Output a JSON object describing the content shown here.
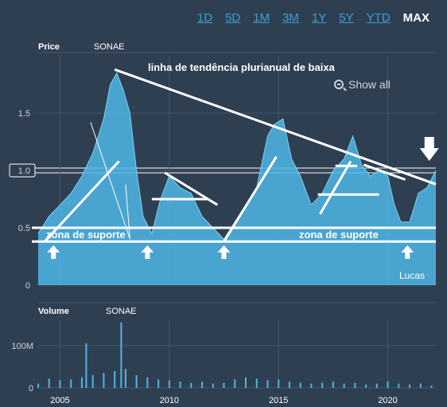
{
  "range_buttons": [
    {
      "label": "1D",
      "active": false
    },
    {
      "label": "5D",
      "active": false
    },
    {
      "label": "1M",
      "active": false
    },
    {
      "label": "3M",
      "active": false
    },
    {
      "label": "1Y",
      "active": false
    },
    {
      "label": "5Y",
      "active": false
    },
    {
      "label": "YTD",
      "active": false
    },
    {
      "label": "MAX",
      "active": true
    }
  ],
  "show_all": "Show all",
  "colors": {
    "background": "#2f3f52",
    "fill": "#4fb6e6",
    "fill_dark": "#2e86b8",
    "line": "#ffffff",
    "tick": "#c9d3de",
    "active_button": "#ffffff",
    "button": "#3aa0d6"
  },
  "chart_data": [
    {
      "type": "area",
      "ylabel": "Price",
      "series_label": "SONAE",
      "ylim": [
        0,
        2.0
      ],
      "yticks": [
        0,
        0.5,
        1.0,
        1.5
      ],
      "ytick_labels": [
        "0",
        "0.5",
        "1.0",
        "1.5"
      ],
      "xlim": [
        2004.0,
        2022.2
      ],
      "xticks": [
        2005,
        2010,
        2015,
        2020
      ],
      "highlight_tick": 1.0,
      "series": [
        {
          "x": [
            2004.0,
            2004.5,
            2005.0,
            2005.5,
            2006.0,
            2006.5,
            2007.0,
            2007.3,
            2007.6,
            2007.9,
            2008.2,
            2008.5,
            2008.8,
            2009.2,
            2009.6,
            2010.0,
            2010.5,
            2011.0,
            2011.5,
            2012.0,
            2012.5,
            2013.0,
            2013.5,
            2014.0,
            2014.5,
            2014.8,
            2015.2,
            2015.6,
            2016.0,
            2016.5,
            2017.0,
            2017.5,
            2018.0,
            2018.4,
            2018.8,
            2019.2,
            2019.6,
            2020.0,
            2020.3,
            2020.6,
            2021.0,
            2021.4,
            2021.8,
            2022.2
          ],
          "y": [
            0.45,
            0.6,
            0.7,
            0.8,
            0.95,
            1.15,
            1.45,
            1.75,
            1.85,
            1.7,
            1.5,
            1.0,
            0.6,
            0.45,
            0.75,
            0.95,
            0.85,
            0.8,
            0.6,
            0.5,
            0.4,
            0.55,
            0.7,
            0.85,
            1.3,
            1.4,
            1.45,
            1.1,
            0.95,
            0.7,
            0.8,
            1.0,
            1.1,
            1.3,
            1.05,
            0.95,
            1.0,
            0.95,
            0.7,
            0.55,
            0.55,
            0.8,
            0.85,
            1.0
          ]
        }
      ],
      "annotations": {
        "trendline_label": "linha de tendência plurianual de baixa",
        "support_labels": [
          "zona de suporte",
          "zona de suporte"
        ],
        "support_levels": [
          0.5,
          0.38
        ],
        "trendline": {
          "x": [
            2007.5,
            2022.2
          ],
          "y": [
            1.88,
            0.88
          ]
        },
        "lucas_label": "Lucas",
        "up_arrows_x": [
          2004.7,
          2009.0,
          2012.5,
          2020.9
        ],
        "down_arrow_x": 2021.9
      }
    },
    {
      "type": "bar",
      "ylabel": "Volume",
      "series_label": "SONAE",
      "ylim": [
        0,
        160
      ],
      "yticks": [
        0,
        100
      ],
      "ytick_labels": [
        "0",
        "100M"
      ],
      "xlim": [
        2004.0,
        2022.2
      ],
      "xticks": [
        2005,
        2010,
        2015,
        2020
      ],
      "xtick_labels": [
        "2005",
        "2010",
        "2015",
        "2020"
      ],
      "series": [
        {
          "x": [
            2004.0,
            2004.5,
            2005.0,
            2005.5,
            2006.0,
            2006.2,
            2006.5,
            2007.0,
            2007.5,
            2007.8,
            2008.0,
            2008.5,
            2009.0,
            2009.5,
            2010.0,
            2010.5,
            2011.0,
            2011.5,
            2012.0,
            2012.5,
            2013.0,
            2013.5,
            2014.0,
            2014.5,
            2015.0,
            2015.5,
            2016.0,
            2016.5,
            2017.0,
            2017.5,
            2018.0,
            2018.5,
            2019.0,
            2019.5,
            2020.0,
            2020.5,
            2021.0,
            2021.5,
            2022.0
          ],
          "y": [
            10,
            22,
            18,
            20,
            25,
            105,
            30,
            35,
            40,
            155,
            45,
            30,
            25,
            20,
            18,
            15,
            12,
            15,
            10,
            12,
            20,
            25,
            22,
            18,
            20,
            15,
            12,
            10,
            12,
            15,
            10,
            12,
            8,
            10,
            15,
            10,
            8,
            10,
            5
          ]
        }
      ]
    }
  ]
}
